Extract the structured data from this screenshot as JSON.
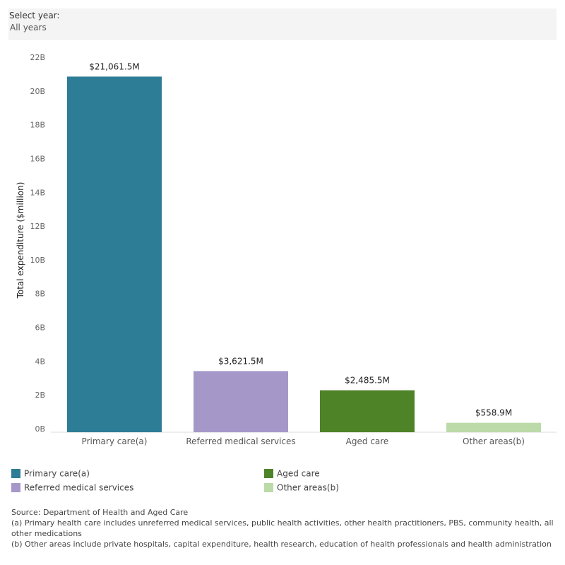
{
  "filter": {
    "label": "Select year:",
    "value": "All years"
  },
  "chart_data": {
    "type": "bar",
    "y_label": "Total expenditure ($million)",
    "categories": [
      "Primary care(a)",
      "Referred medical services",
      "Aged care",
      "Other areas(b)"
    ],
    "values": [
      21061.5,
      3621.5,
      2485.5,
      558.9
    ],
    "value_labels": [
      "$21,061.5M",
      "$3,621.5M",
      "$2,485.5M",
      "$558.9M"
    ],
    "colors": [
      "#2e7d96",
      "#a598c9",
      "#4e8328",
      "#bcdaa8"
    ],
    "ylim": [
      0,
      22000
    ],
    "yticks": [
      {
        "value": 0,
        "label": "0B"
      },
      {
        "value": 2000,
        "label": "2B"
      },
      {
        "value": 4000,
        "label": "4B"
      },
      {
        "value": 6000,
        "label": "6B"
      },
      {
        "value": 8000,
        "label": "8B"
      },
      {
        "value": 10000,
        "label": "10B"
      },
      {
        "value": 12000,
        "label": "12B"
      },
      {
        "value": 14000,
        "label": "14B"
      },
      {
        "value": 16000,
        "label": "16B"
      },
      {
        "value": 18000,
        "label": "18B"
      },
      {
        "value": 20000,
        "label": "20B"
      },
      {
        "value": 22000,
        "label": "22B"
      }
    ],
    "grid": false
  },
  "notes": [
    "Source: Department of Health and Aged Care",
    "(a) Primary health care includes unreferred medical services, public health activities, other health practitioners, PBS, community health, all other medications",
    "(b) Other areas include private hospitals, capital expenditure, health research, education of health professionals and health administration"
  ]
}
